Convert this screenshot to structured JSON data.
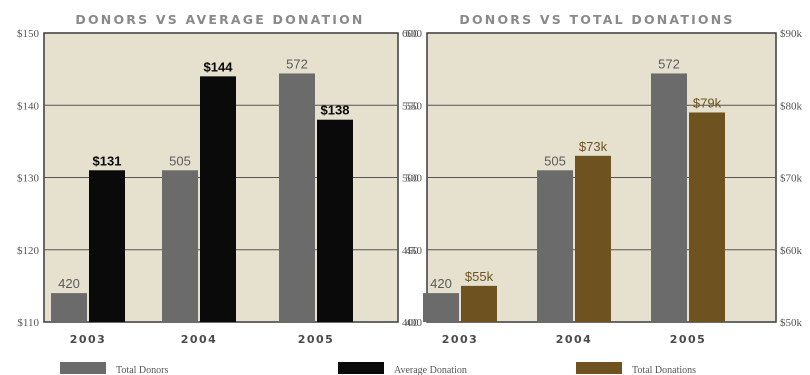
{
  "chart_data": [
    {
      "type": "bar",
      "title": "Donors vs Average Donation",
      "categories": [
        "2003",
        "2004",
        "2005"
      ],
      "series": [
        {
          "name": "Total Donors",
          "values": [
            420,
            505,
            572
          ],
          "labels": [
            "420",
            "505",
            "572"
          ],
          "color": "#6b6b6b",
          "axis": "right"
        },
        {
          "name": "Average Donation",
          "values": [
            131,
            144,
            138
          ],
          "labels": [
            "$131",
            "$144",
            "$138"
          ],
          "color": "#0a0a0a",
          "axis": "left"
        }
      ],
      "left_axis": {
        "ylim": [
          110,
          150
        ],
        "ticks": [
          "$110",
          "$120",
          "$130",
          "$140",
          "$150"
        ]
      },
      "right_axis": {
        "ylim": [
          400,
          600
        ],
        "ticks": [
          "400",
          "450",
          "500",
          "550",
          "600"
        ]
      },
      "grid": true,
      "background": "#e6e0cf"
    },
    {
      "type": "bar",
      "title": "Donors vs Total Donations",
      "categories": [
        "2003",
        "2004",
        "2005"
      ],
      "series": [
        {
          "name": "Total Donors",
          "values": [
            420,
            505,
            572
          ],
          "labels": [
            "420",
            "505",
            "572"
          ],
          "color": "#6b6b6b",
          "axis": "left"
        },
        {
          "name": "Total Donations",
          "values": [
            55,
            73,
            79
          ],
          "labels": [
            "$55k",
            "$73k",
            "$79k"
          ],
          "color": "#6e5320",
          "axis": "right"
        }
      ],
      "left_axis": {
        "ylim": [
          400,
          600
        ],
        "ticks": [
          "400",
          "450",
          "500",
          "550",
          "600"
        ]
      },
      "right_axis": {
        "ylim": [
          50,
          90
        ],
        "ticks": [
          "$50k",
          "$60k",
          "$70k",
          "$80k",
          "$90k"
        ]
      },
      "grid": true,
      "background": "#e6e0cf"
    }
  ],
  "legend": [
    {
      "label": "Total Donors",
      "color": "#6b6b6b"
    },
    {
      "label": "Average Donation",
      "color": "#0a0a0a"
    },
    {
      "label": "Total Donations",
      "color": "#6e5320"
    }
  ]
}
